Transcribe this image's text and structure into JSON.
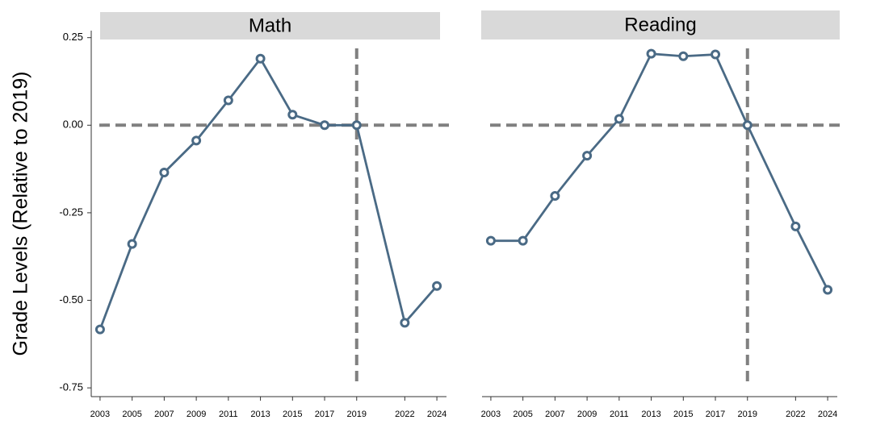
{
  "chart_data": [
    {
      "type": "line",
      "title": "Math",
      "ylabel": "Grade Levels (Relative to 2019)",
      "x": [
        2003,
        2005,
        2007,
        2009,
        2011,
        2013,
        2015,
        2017,
        2019,
        2022,
        2024
      ],
      "series": [
        {
          "color": "#4a6a85",
          "values": [
            -0.583,
            -0.339,
            -0.135,
            -0.044,
            0.071,
            0.19,
            0.03,
            0,
            0,
            -0.564,
            -0.459
          ]
        }
      ],
      "xlim": [
        2002.45,
        2024.6
      ],
      "xticks": [
        2003,
        2005,
        2007,
        2009,
        2011,
        2013,
        2015,
        2017,
        2019,
        2022,
        2024
      ],
      "ylim": [
        -0.775,
        0.27
      ],
      "yticks": [
        0.25,
        {
          "value": 0,
          "label": "0.00"
        },
        -0.25,
        {
          "value": -0.5,
          "label": "-0.50"
        },
        -0.75
      ],
      "hline": 0,
      "vline": 2019,
      "refline_color": "#808080"
    },
    {
      "type": "line",
      "title": "Reading",
      "x": [
        2003,
        2005,
        2007,
        2009,
        2011,
        2013,
        2015,
        2017,
        2019,
        2022,
        2024
      ],
      "series": [
        {
          "color": "#4a6a85",
          "values": [
            -0.33,
            -0.33,
            -0.202,
            -0.087,
            0.018,
            0.204,
            0.197,
            0.202,
            0,
            -0.289,
            -0.47
          ]
        }
      ],
      "xlim": [
        2002.45,
        2024.6
      ],
      "xticks": [
        2003,
        2005,
        2007,
        2009,
        2011,
        2013,
        2015,
        2017,
        2019,
        2022,
        2024
      ],
      "ylim": [
        -0.775,
        0.27
      ],
      "hline": 0,
      "vline": 2019,
      "refline_color": "#808080"
    }
  ]
}
